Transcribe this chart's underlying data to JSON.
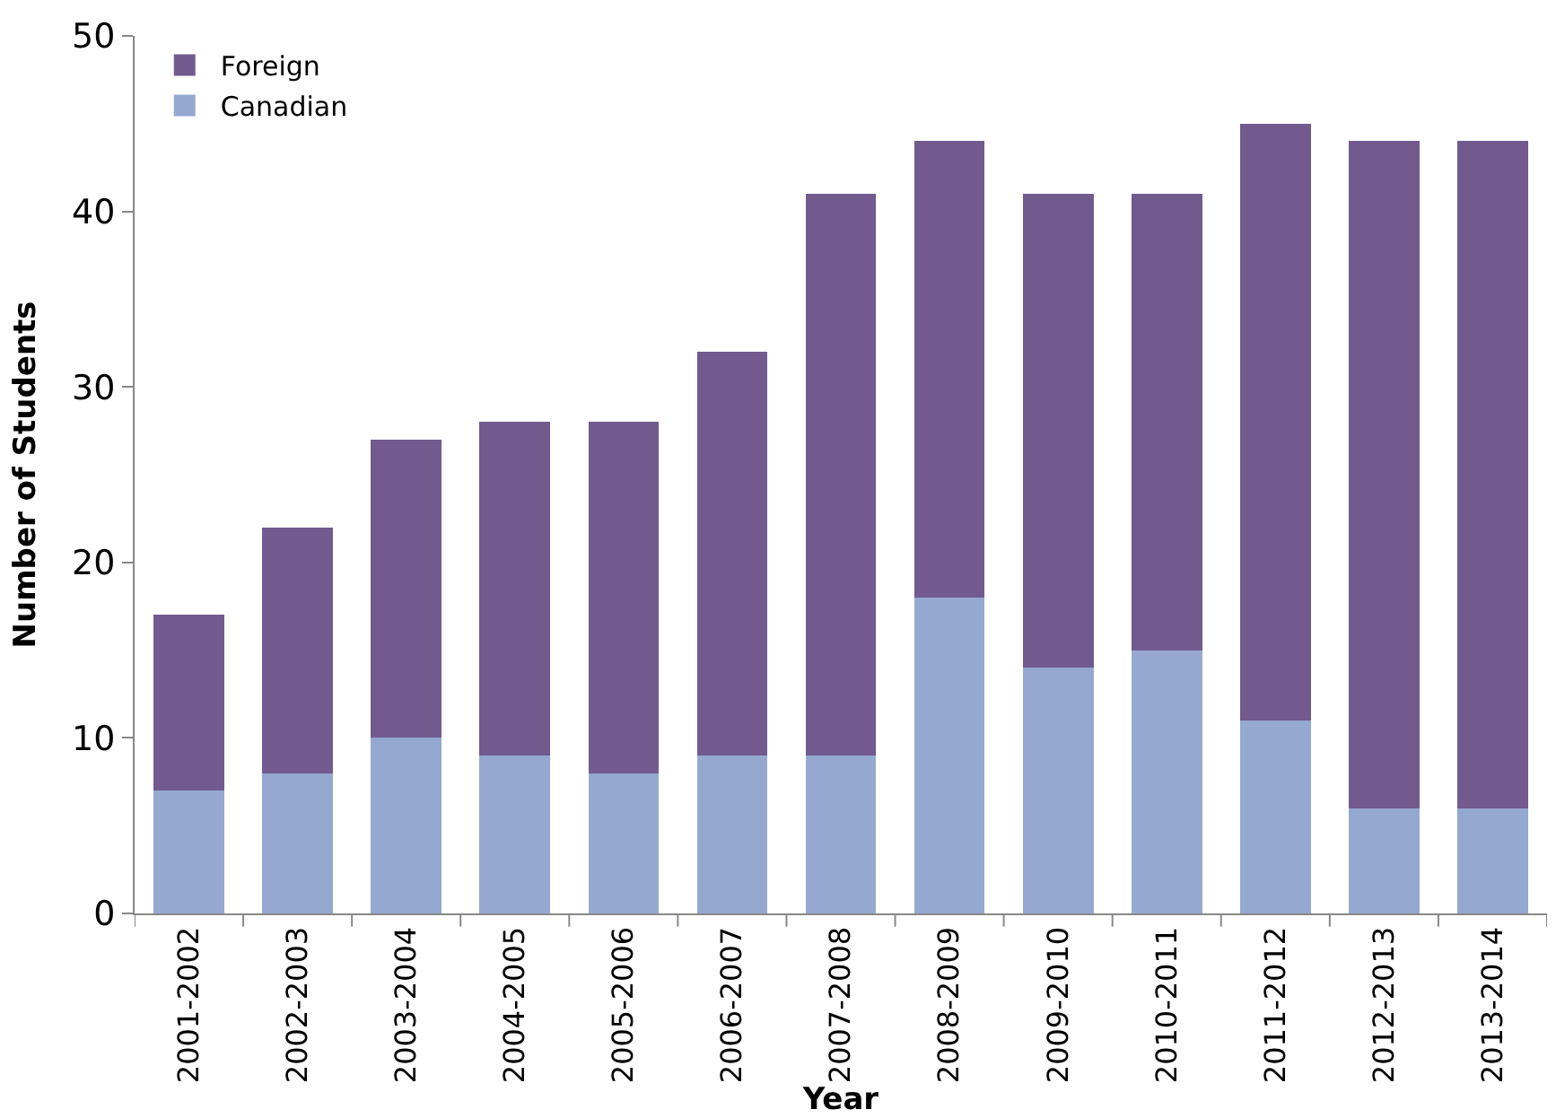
{
  "chart_data": {
    "type": "bar",
    "stacked": true,
    "xlabel": "Year",
    "ylabel": "Number of Students",
    "categories": [
      "2001-2002",
      "2002-2003",
      "2003-2004",
      "2004-2005",
      "2005-2006",
      "2006-2007",
      "2007-2008",
      "2008-2009",
      "2009-2010",
      "2010-2011",
      "2011-2012",
      "2012-2013",
      "2013-2014"
    ],
    "series": [
      {
        "name": "Canadian",
        "color": "#95a9d0",
        "values": [
          7,
          8,
          10,
          9,
          8,
          9,
          9,
          18,
          14,
          15,
          11,
          6,
          6
        ]
      },
      {
        "name": "Foreign",
        "color": "#725a8f",
        "values": [
          10,
          14,
          17,
          19,
          20,
          23,
          32,
          26,
          27,
          26,
          34,
          38,
          38
        ]
      }
    ],
    "ylim": [
      0,
      50
    ],
    "yticks": [
      0,
      10,
      20,
      30,
      40,
      50
    ],
    "legend": "top left"
  }
}
